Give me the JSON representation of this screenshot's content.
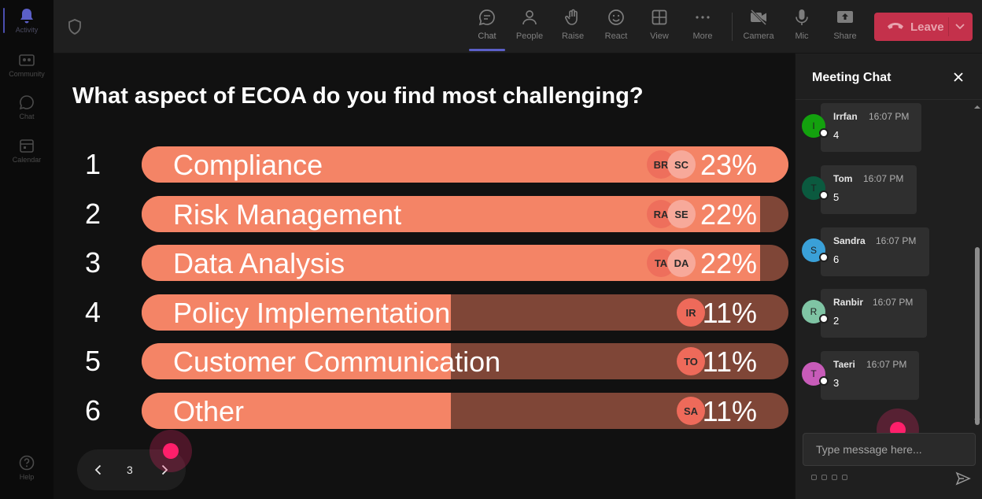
{
  "rail": {
    "items": [
      {
        "id": "activity",
        "label": "Activity"
      },
      {
        "id": "community",
        "label": "Community"
      },
      {
        "id": "chat",
        "label": "Chat"
      },
      {
        "id": "calendar",
        "label": "Calendar"
      }
    ],
    "help": "Help"
  },
  "toolbar": {
    "chat": "Chat",
    "people": "People",
    "raise": "Raise",
    "react": "React",
    "view": "View",
    "more": "More",
    "camera": "Camera",
    "mic": "Mic",
    "share": "Share",
    "leave": "Leave"
  },
  "poll": {
    "question": "What aspect of ECOA do you find most challenging?",
    "options": [
      {
        "rank": "1",
        "label": "Compliance",
        "percent_text": "23%",
        "percent": 23,
        "avatars": [
          "BR",
          "SC"
        ]
      },
      {
        "rank": "2",
        "label": "Risk Management",
        "percent_text": "22%",
        "percent": 22,
        "avatars": [
          "RA",
          "SE"
        ]
      },
      {
        "rank": "3",
        "label": "Data Analysis",
        "percent_text": "22%",
        "percent": 22,
        "avatars": [
          "TA",
          "DA"
        ]
      },
      {
        "rank": "4",
        "label": "Policy Implementation",
        "percent_text": "11%",
        "percent": 11,
        "avatars": [
          "IR"
        ]
      },
      {
        "rank": "5",
        "label": "Customer Communication",
        "percent_text": "11%",
        "percent": 11,
        "avatars": [
          "TO"
        ]
      },
      {
        "rank": "6",
        "label": "Other",
        "percent_text": "11%",
        "percent": 11,
        "avatars": [
          "SA"
        ]
      }
    ],
    "page": "3"
  },
  "chat": {
    "title": "Meeting Chat",
    "messages": [
      {
        "initial": "I",
        "name": "Irrfan",
        "time": "16:07 PM",
        "text": "4",
        "color": "#13a10e"
      },
      {
        "initial": "T",
        "name": "Tom",
        "time": "16:07 PM",
        "text": "5",
        "color": "#0b5a3f"
      },
      {
        "initial": "S",
        "name": "Sandra",
        "time": "16:07 PM",
        "text": "6",
        "color": "#3aa0d8"
      },
      {
        "initial": "R",
        "name": "Ranbir",
        "time": "16:07 PM",
        "text": "2",
        "color": "#7fc4a4"
      },
      {
        "initial": "T",
        "name": "Taeri",
        "time": "16:07 PM",
        "text": "3",
        "color": "#c75bb8"
      }
    ],
    "placeholder": "Type message here..."
  },
  "colors": {
    "bar_fill": "#f48466",
    "bar_track": "#7f4637",
    "leave": "#c4314b",
    "accent": "#5b5fc7"
  }
}
